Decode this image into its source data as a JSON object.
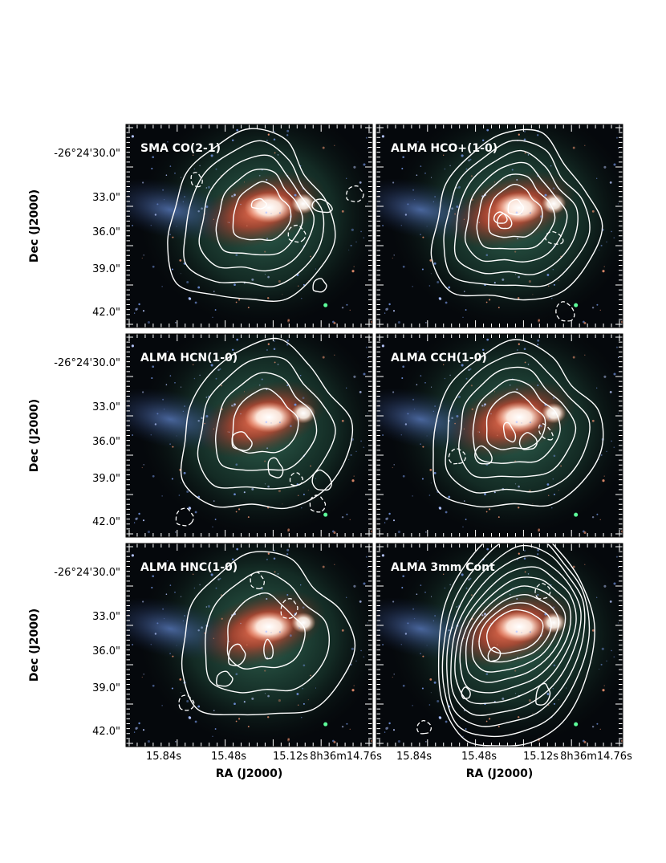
{
  "figure": {
    "panels": [
      {
        "title": "SMA CO(2-1)",
        "levels": 5,
        "neg_blobs": 3
      },
      {
        "title": "ALMA HCO+(1-0)",
        "levels": 6,
        "neg_blobs": 2
      },
      {
        "title": "ALMA HCN(1-0)",
        "levels": 4,
        "neg_blobs": 3
      },
      {
        "title": "ALMA CCH(1-0)",
        "levels": 5,
        "neg_blobs": 2
      },
      {
        "title": "ALMA HNC(1-0)",
        "levels": 3,
        "neg_blobs": 3
      },
      {
        "title": "ALMA 3mm Cont",
        "levels": 10,
        "neg_blobs": 2
      }
    ],
    "y_axis": {
      "label": "Dec (J2000)",
      "ticks": [
        "-26°24'30.0\"",
        "33.0\"",
        "36.0\"",
        "39.0\"",
        "42.0\""
      ]
    },
    "x_axis": {
      "label": "RA (J2000)",
      "ticks": [
        "15.84s",
        "15.48s",
        "15.12s",
        "8h36m14.76s"
      ]
    },
    "colors": {
      "contour": "#ffffff",
      "background_dark": "#05080c",
      "diffuse_green": "#2f6a55",
      "starburst_red": "#ff4a2c",
      "core_white": "#ffffff",
      "stars_blue": "#6f8fd9"
    }
  }
}
